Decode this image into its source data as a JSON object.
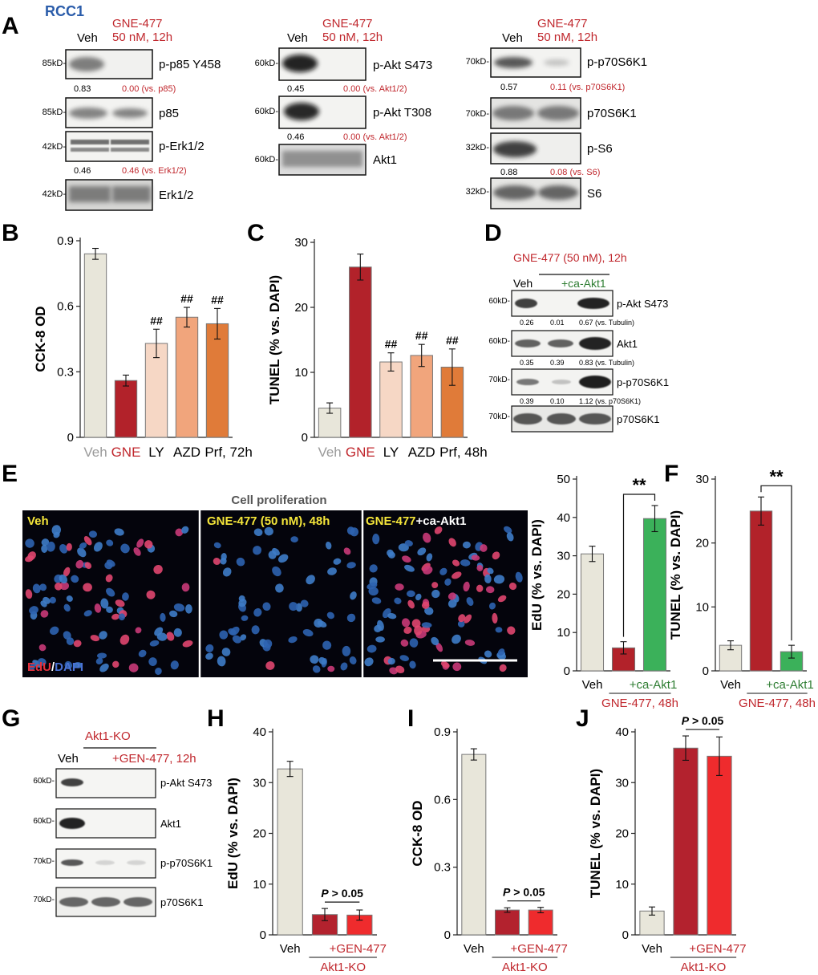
{
  "colors": {
    "red": "#c0272d",
    "green": "#2e7d32",
    "blue": "#2a5caa",
    "gray": "#9a9a9a",
    "beige": "#e8e6da",
    "grne": "#b2222a",
    "ly": "#f6d7c5",
    "azd": "#f1a57c",
    "prf": "#e07b39",
    "caakt": "#3bb15a",
    "ko": "#b3222e",
    "kognb": "#ef2b2d",
    "yellow": "#f5e63a"
  },
  "panelA": {
    "letter": "A",
    "cell_line": "RCC1",
    "col1": {
      "veh": "Veh",
      "treat1": "GNE-477",
      "treat2": "50 nM, 12h",
      "blots": [
        {
          "mw": "85kD-",
          "label": "p-p85 Y458",
          "v1": "0.83",
          "v2": "0.00 (vs. p85)"
        },
        {
          "mw": "85kD-",
          "label": "p85"
        },
        {
          "mw": "42kD-",
          "label": "p-Erk1/2",
          "v1": "0.46",
          "v2": "0.46 (vs. Erk1/2)"
        },
        {
          "mw": "42kD-",
          "label": "Erk1/2"
        }
      ]
    },
    "col2": {
      "veh": "Veh",
      "treat1": "GNE-477",
      "treat2": "50 nM, 12h",
      "blots": [
        {
          "mw": "60kD-",
          "label": "p-Akt S473",
          "v1": "0.45",
          "v2": "0.00 (vs. Akt1/2)"
        },
        {
          "mw": "60kD-",
          "label": "p-Akt T308",
          "v1": "0.46",
          "v2": "0.00 (vs. Akt1/2)"
        },
        {
          "mw": "60kD-",
          "label": "Akt1"
        }
      ]
    },
    "col3": {
      "veh": "Veh",
      "treat1": "GNE-477",
      "treat2": "50 nM, 12h",
      "blots": [
        {
          "mw": "70kD-",
          "label": "p-p70S6K1",
          "v1": "0.57",
          "v2": "0.11 (vs. p70S6K1)"
        },
        {
          "mw": "70kD-",
          "label": "p70S6K1"
        },
        {
          "mw": "32kD-",
          "label": "p-S6",
          "v1": "0.88",
          "v2": "0.08 (vs. S6)"
        },
        {
          "mw": "32kD-",
          "label": "S6"
        }
      ]
    }
  },
  "panelD": {
    "letter": "D",
    "treat": "GNE-477 (50 nM), 12h",
    "veh": "Veh",
    "ca": "+ca-Akt1",
    "blots": [
      {
        "mw": "60kD-",
        "label": "p-Akt S473",
        "vals": [
          "0.26",
          "0.01",
          "0.67 (vs. Tubulin)"
        ]
      },
      {
        "mw": "60kD-",
        "label": "Akt1",
        "vals": [
          "0.35",
          "0.39",
          "0.83 (vs. Tubulin)"
        ]
      },
      {
        "mw": "70kD-",
        "label": "p-p70S6K1",
        "vals": [
          "0.39",
          "0.10",
          "1.12 (vs. p70S6K1)"
        ]
      },
      {
        "mw": "70kD-",
        "label": "p70S6K1"
      }
    ]
  },
  "panelE": {
    "letter": "E",
    "title": "Cell proliferation",
    "img1": "Veh",
    "img2": "GNE-477 (50 nM), 48h",
    "img3a": "GNE-477",
    "img3b": "+ca-Akt1",
    "edu": "EdU",
    "slash": "/",
    "dapi": "DAPI"
  },
  "panelG": {
    "letter": "G",
    "ko": "Akt1-KO",
    "veh": "Veh",
    "gen": "+GEN-477, 12h",
    "blots": [
      {
        "mw": "60kD-",
        "label": "p-Akt S473"
      },
      {
        "mw": "60kD-",
        "label": "Akt1"
      },
      {
        "mw": "70kD-",
        "label": "p-p70S6K1"
      },
      {
        "mw": "70kD-",
        "label": "p70S6K1"
      }
    ]
  },
  "chart_data": [
    {
      "panel": "B",
      "type": "bar",
      "categories": [
        "Veh",
        "GNE",
        "LY",
        "AZD",
        "Prf, 72h"
      ],
      "values": [
        0.84,
        0.26,
        0.43,
        0.55,
        0.52
      ],
      "errors": [
        0.025,
        0.025,
        0.065,
        0.045,
        0.07
      ],
      "marks": [
        "",
        "",
        "##",
        "##",
        "##"
      ],
      "ylabel": "CCK-8 OD",
      "ylim": [
        0,
        0.9
      ],
      "yticks": [
        0,
        0.3,
        0.6,
        0.9
      ],
      "ytick_labels": [
        "0",
        "0.3",
        "0.6",
        "0.9"
      ]
    },
    {
      "panel": "C",
      "type": "bar",
      "categories": [
        "Veh",
        "GNE",
        "LY",
        "AZD",
        "Prf, 48h"
      ],
      "values": [
        4.5,
        26.2,
        11.6,
        12.6,
        10.8
      ],
      "errors": [
        0.8,
        2.0,
        1.4,
        1.7,
        2.8
      ],
      "marks": [
        "",
        "",
        "##",
        "##",
        "##"
      ],
      "ylabel": "TUNEL (% vs. DAPI)",
      "ylim": [
        0,
        30
      ],
      "yticks": [
        0,
        10,
        20,
        30
      ],
      "ytick_labels": [
        "0",
        "10",
        "20",
        "30"
      ]
    },
    {
      "panel": "E",
      "type": "bar",
      "categories": [
        "Veh",
        "",
        "+ca-Akt1"
      ],
      "values": [
        30.5,
        6.0,
        39.7
      ],
      "errors": [
        2.0,
        1.6,
        3.4
      ],
      "group_label": "GNE-477, 48h",
      "significance": "**",
      "ylabel": "EdU (% vs. DAPI)",
      "ylim": [
        0,
        50
      ],
      "yticks": [
        0,
        10,
        20,
        30,
        40,
        50
      ],
      "ytick_labels": [
        "0",
        "10",
        "20",
        "30",
        "40",
        "50"
      ]
    },
    {
      "panel": "F",
      "type": "bar",
      "categories": [
        "Veh",
        "",
        "+ca-Akt1"
      ],
      "values": [
        4.0,
        25.0,
        3.0
      ],
      "errors": [
        0.7,
        2.2,
        1.0
      ],
      "group_label": "GNE-477, 48h",
      "significance": "**",
      "ylabel": "TUNEL (% vs. DAPI)",
      "ylim": [
        0,
        30
      ],
      "yticks": [
        0,
        10,
        20,
        30
      ],
      "ytick_labels": [
        "0",
        "10",
        "20",
        "30"
      ]
    },
    {
      "panel": "H",
      "type": "bar",
      "categories": [
        "Veh",
        "",
        "+GEN-477"
      ],
      "values": [
        32.7,
        4.0,
        3.9
      ],
      "errors": [
        1.5,
        1.2,
        1.0
      ],
      "group_label": "Akt1-KO",
      "significance": "P > 0.05",
      "ylabel": "EdU (% vs. DAPI)",
      "ylim": [
        0,
        40
      ],
      "yticks": [
        0,
        10,
        20,
        30,
        40
      ],
      "ytick_labels": [
        "0",
        "10",
        "20",
        "30",
        "40"
      ]
    },
    {
      "panel": "I",
      "type": "bar",
      "categories": [
        "Veh",
        "",
        "+GEN-477"
      ],
      "values": [
        0.8,
        0.11,
        0.11
      ],
      "errors": [
        0.025,
        0.01,
        0.012
      ],
      "group_label": "Akt1-KO",
      "significance": "P > 0.05",
      "ylabel": "CCK-8 OD",
      "ylim": [
        0,
        0.9
      ],
      "yticks": [
        0,
        0.3,
        0.6,
        0.9
      ],
      "ytick_labels": [
        "0",
        "0.3",
        "0.6",
        "0.9"
      ]
    },
    {
      "panel": "J",
      "type": "bar",
      "categories": [
        "Veh",
        "",
        "+GEN-477"
      ],
      "values": [
        4.7,
        36.8,
        35.2
      ],
      "errors": [
        0.8,
        2.4,
        3.8
      ],
      "group_label": "Akt1-KO",
      "significance": "P > 0.05",
      "ylabel": "TUNEL (% vs. DAPI)",
      "ylim": [
        0,
        40
      ],
      "yticks": [
        0,
        10,
        20,
        30,
        40
      ],
      "ytick_labels": [
        "0",
        "10",
        "20",
        "30",
        "40"
      ]
    }
  ]
}
